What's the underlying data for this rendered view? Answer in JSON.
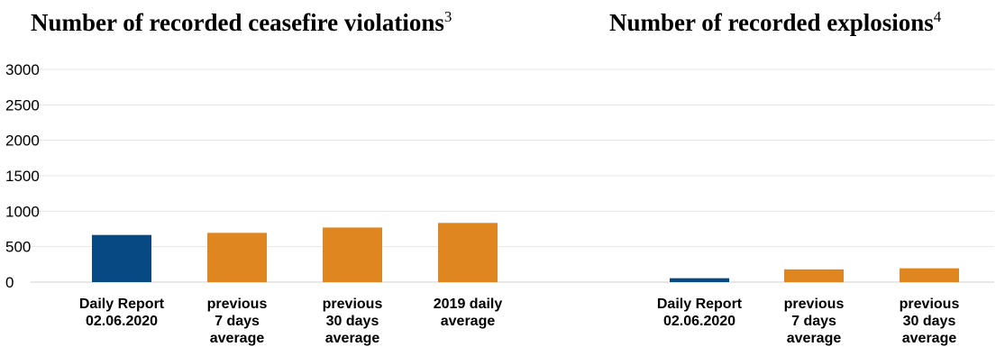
{
  "chart_data": [
    {
      "type": "bar",
      "title": "Number of recorded ceasefire violations",
      "title_sup": "3",
      "categories": [
        [
          "Daily Report",
          "02.06.2020"
        ],
        [
          "previous",
          "7 days",
          "average"
        ],
        [
          "previous",
          "30 days",
          "average"
        ],
        [
          "2019 daily",
          "average"
        ]
      ],
      "values": [
        665,
        695,
        770,
        835
      ],
      "colors": [
        "#074a83",
        "#e08620",
        "#e08620",
        "#e08620"
      ],
      "yticks": [
        0,
        500,
        1000,
        1500,
        2000,
        2500,
        3000
      ],
      "ylim": [
        0,
        3000
      ],
      "grid": true
    },
    {
      "type": "bar",
      "title": "Number of recorded explosions",
      "title_sup": "4",
      "categories": [
        [
          "Daily Report",
          "02.06.2020"
        ],
        [
          "previous",
          "7 days",
          "average"
        ],
        [
          "previous",
          "30 days",
          "average"
        ]
      ],
      "values": [
        55,
        180,
        195
      ],
      "colors": [
        "#074a83",
        "#e08620",
        "#e08620"
      ],
      "ylim": [
        0,
        3000
      ],
      "grid": true
    }
  ]
}
